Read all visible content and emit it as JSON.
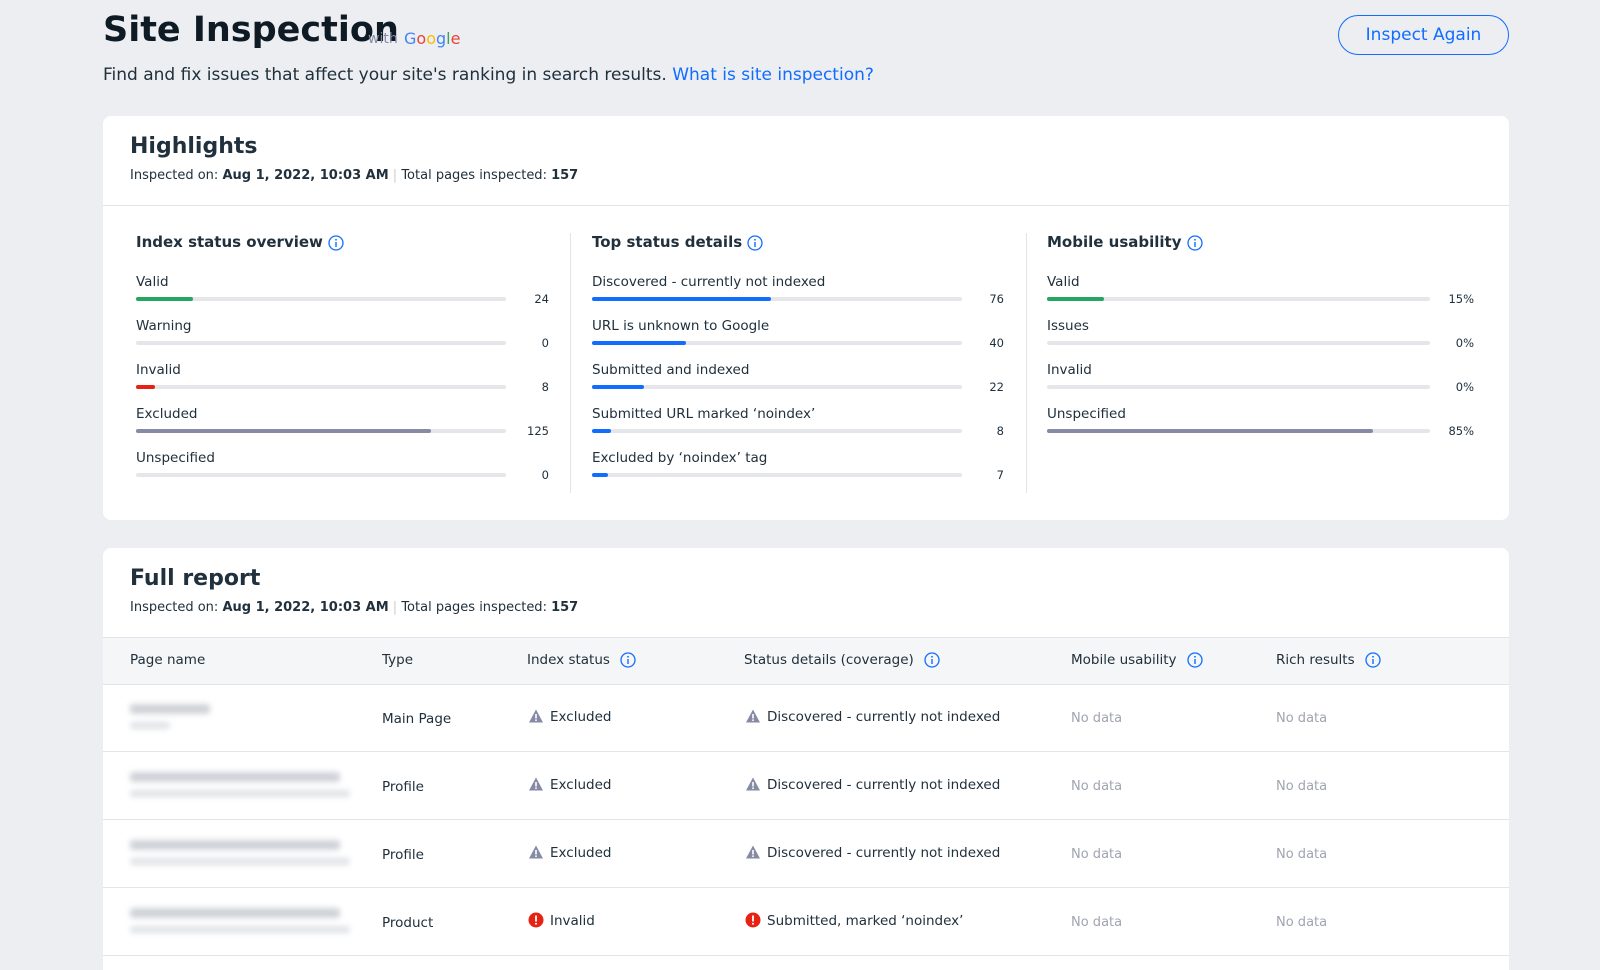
{
  "header": {
    "title": "Site Inspection",
    "with": "with",
    "brand": "Google",
    "subtitle": "Find and fix issues that affect your site's ranking in search results.",
    "link": "What is site inspection?",
    "button": "Inspect Again"
  },
  "highlights": {
    "title": "Highlights",
    "inspected_label": "Inspected on:",
    "inspected_on": "Aug 1, 2022, 10:03 AM",
    "total_label": "Total pages inspected:",
    "total_pages": 157,
    "sections": [
      {
        "title": "Index status overview",
        "items": [
          {
            "label": "Valid",
            "value": 24,
            "color": "#25a55f"
          },
          {
            "label": "Warning",
            "value": 0,
            "color": "#f0a020"
          },
          {
            "label": "Invalid",
            "value": 8,
            "color": "#e62214"
          },
          {
            "label": "Excluded",
            "value": 125,
            "color": "#868aa5"
          },
          {
            "label": "Unspecified",
            "value": 0,
            "color": "#868aa5"
          }
        ]
      },
      {
        "title": "Top status details",
        "items": [
          {
            "label": "Discovered - currently not indexed",
            "value": 76,
            "color": "#116dff"
          },
          {
            "label": "URL is unknown to Google",
            "value": 40,
            "color": "#116dff"
          },
          {
            "label": "Submitted and indexed",
            "value": 22,
            "color": "#116dff"
          },
          {
            "label": "Submitted URL marked ‘noindex’",
            "value": 8,
            "color": "#116dff"
          },
          {
            "label": "Excluded by ‘noindex’ tag",
            "value": 7,
            "color": "#116dff"
          }
        ]
      },
      {
        "title": "Mobile usability",
        "items": [
          {
            "label": "Valid",
            "value": 15,
            "value_label": "15%",
            "color": "#25a55f"
          },
          {
            "label": "Issues",
            "value": 0,
            "value_label": "0%",
            "color": "#f0a020"
          },
          {
            "label": "Invalid",
            "value": 0,
            "value_label": "0%",
            "color": "#e62214"
          },
          {
            "label": "Unspecified",
            "value": 85,
            "value_label": "85%",
            "color": "#868aa5"
          }
        ]
      }
    ]
  },
  "full_report": {
    "title": "Full report",
    "inspected_label": "Inspected on:",
    "inspected_on": "Aug 1, 2022, 10:03 AM",
    "total_label": "Total pages inspected:",
    "total_pages": 157,
    "columns": [
      {
        "label": "Page name",
        "info": false
      },
      {
        "label": "Type",
        "info": false
      },
      {
        "label": "Index status",
        "info": true
      },
      {
        "label": "Status details (coverage)",
        "info": true
      },
      {
        "label": "Mobile usability",
        "info": true
      },
      {
        "label": "Rich results",
        "info": true
      }
    ],
    "rows": [
      {
        "type": "Main Page",
        "index_status": "Excluded",
        "index_icon": "warning",
        "status_details": "Discovered - currently not indexed",
        "details_icon": "warning",
        "mobile_usability": "No data",
        "rich_results": "No data"
      },
      {
        "type": "Profile",
        "index_status": "Excluded",
        "index_icon": "warning",
        "status_details": "Discovered - currently not indexed",
        "details_icon": "warning",
        "mobile_usability": "No data",
        "rich_results": "No data"
      },
      {
        "type": "Profile",
        "index_status": "Excluded",
        "index_icon": "warning",
        "status_details": "Discovered - currently not indexed",
        "details_icon": "warning",
        "mobile_usability": "No data",
        "rich_results": "No data"
      },
      {
        "type": "Product",
        "index_status": "Invalid",
        "index_icon": "error",
        "status_details": "Submitted, marked ‘noindex’",
        "details_icon": "error",
        "mobile_usability": "No data",
        "rich_results": "No data"
      }
    ]
  }
}
